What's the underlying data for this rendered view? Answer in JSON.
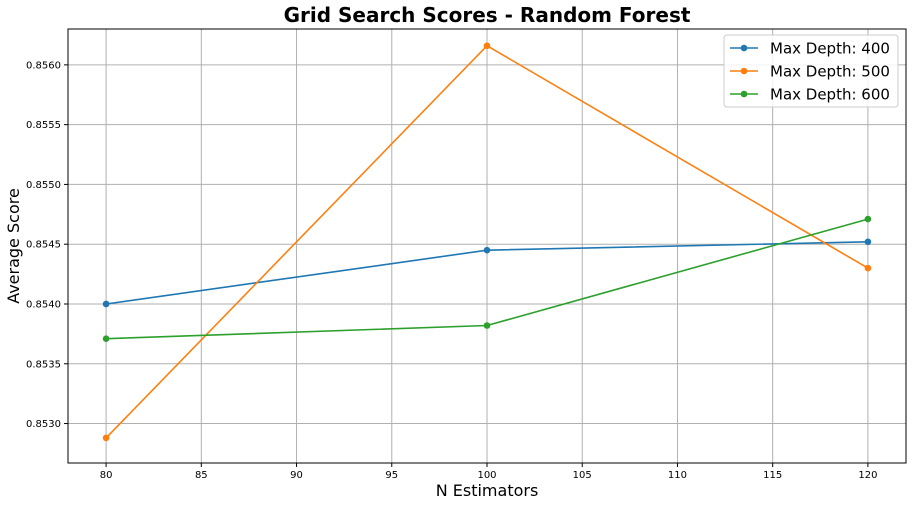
{
  "chart_data": {
    "type": "line",
    "title": "Grid Search Scores - Random Forest",
    "xlabel": "N Estimators",
    "ylabel": "Average Score",
    "xlim": [
      78,
      122
    ],
    "ylim": [
      0.85267,
      0.8563
    ],
    "x_ticks": [
      80,
      85,
      90,
      95,
      100,
      105,
      110,
      115,
      120
    ],
    "y_ticks": [
      0.853,
      0.8535,
      0.854,
      0.8545,
      0.855,
      0.8555,
      0.856
    ],
    "x_tick_labels": [
      "80",
      "85",
      "90",
      "95",
      "100",
      "105",
      "110",
      "115",
      "120"
    ],
    "y_tick_labels": [
      "0.8530",
      "0.8535",
      "0.8540",
      "0.8545",
      "0.8550",
      "0.8555",
      "0.8560"
    ],
    "grid": true,
    "legend_position": "top-right",
    "x": [
      80,
      100,
      120
    ],
    "series": [
      {
        "name": "Max Depth: 400",
        "color": "#1f77b4",
        "values": [
          0.854,
          0.85445,
          0.85452
        ]
      },
      {
        "name": "Max Depth: 500",
        "color": "#ff7f0e",
        "values": [
          0.85288,
          0.85616,
          0.8543
        ]
      },
      {
        "name": "Max Depth: 600",
        "color": "#2ca02c",
        "values": [
          0.85371,
          0.85382,
          0.85471
        ]
      }
    ]
  }
}
